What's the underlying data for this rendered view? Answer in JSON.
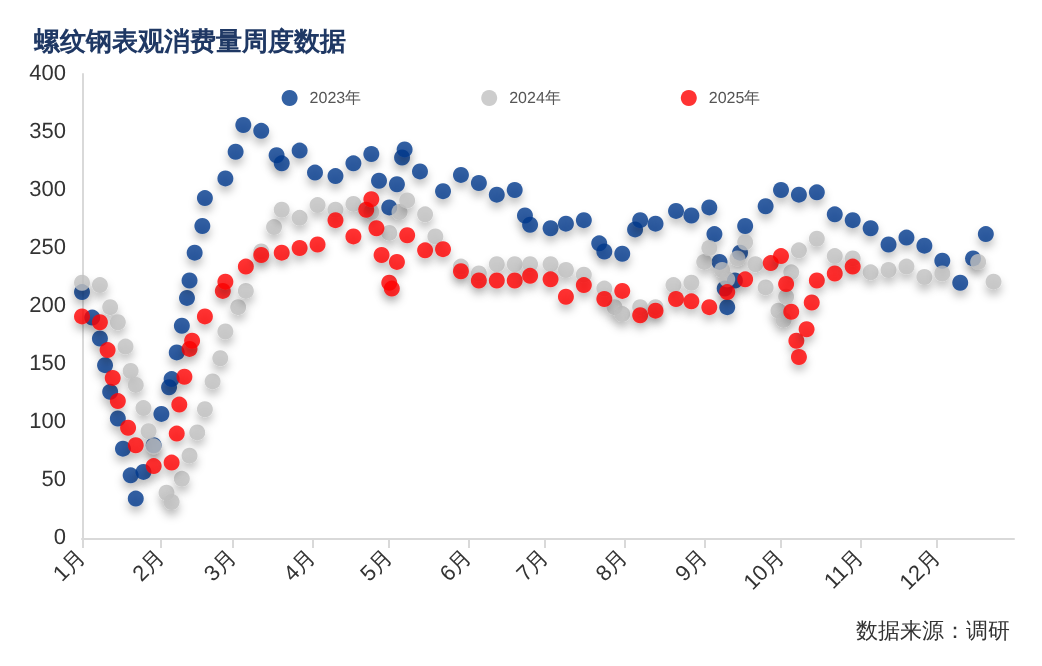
{
  "chart_data": {
    "type": "scatter",
    "title": "螺纹钢表观消费量周度数据",
    "annotations": [
      "数据来源：调研"
    ],
    "marker": "circle",
    "grid": false,
    "legend": "top",
    "xlim": [
      "--01-01",
      "--12-31"
    ],
    "xticks": [
      {
        "value": "--01-01",
        "label": "1月"
      },
      {
        "value": "--02-01",
        "label": "2月"
      },
      {
        "value": "--03-01",
        "label": "3月"
      },
      {
        "value": "--04-01",
        "label": "4月"
      },
      {
        "value": "--05-01",
        "label": "5月"
      },
      {
        "value": "--06-01",
        "label": "6月"
      },
      {
        "value": "--07-01",
        "label": "7月"
      },
      {
        "value": "--08-01",
        "label": "8月"
      },
      {
        "value": "--09-01",
        "label": "9月"
      },
      {
        "value": "--10-01",
        "label": "10月"
      },
      {
        "value": "--11-01",
        "label": "11月"
      },
      {
        "value": "--12-01",
        "label": "12月"
      }
    ],
    "ylim": [
      0,
      400
    ],
    "yticks": [
      0,
      50,
      100,
      150,
      200,
      250,
      300,
      350,
      400
    ],
    "series": [
      {
        "name": "2023年",
        "color": "#003a8c",
        "x": [
          "--01-01",
          "--01-05",
          "--01-08",
          "--01-10",
          "--01-12",
          "--01-15",
          "--01-17",
          "--01-20",
          "--01-22",
          "--01-25",
          "--01-29",
          "--02-01",
          "--02-04",
          "--02-05",
          "--02-07",
          "--02-09",
          "--02-11",
          "--02-12",
          "--02-14",
          "--02-17",
          "--02-18",
          "--02-26",
          "--03-02",
          "--03-05",
          "--03-12",
          "--03-18",
          "--03-20",
          "--03-27",
          "--04-02",
          "--04-10",
          "--04-17",
          "--04-24",
          "--04-27",
          "--05-01",
          "--05-04",
          "--05-06",
          "--05-07",
          "--05-13",
          "--05-22",
          "--05-29",
          "--06-05",
          "--06-12",
          "--06-19",
          "--06-23",
          "--06-25",
          "--07-03",
          "--07-09",
          "--07-16",
          "--07-22",
          "--07-24",
          "--07-31",
          "--08-05",
          "--08-07",
          "--08-13",
          "--08-21",
          "--08-27",
          "--09-03",
          "--09-05",
          "--09-07",
          "--09-09",
          "--09-10",
          "--09-13",
          "--09-15",
          "--09-17",
          "--09-25",
          "--10-01",
          "--10-08",
          "--10-15",
          "--10-22",
          "--10-29",
          "--11-05",
          "--11-12",
          "--11-19",
          "--11-26",
          "--12-03",
          "--12-10",
          "--12-15",
          "--12-20"
        ],
        "values": [
          212,
          190,
          172,
          149,
          126,
          103,
          77,
          54,
          34,
          57,
          80,
          107,
          130,
          137,
          160,
          183,
          207,
          222,
          246,
          269,
          293,
          310,
          333,
          356,
          351,
          330,
          323,
          334,
          315,
          312,
          323,
          331,
          308,
          285,
          305,
          328,
          335,
          316,
          299,
          313,
          306,
          296,
          300,
          278,
          270,
          267,
          271,
          274,
          254,
          247,
          245,
          266,
          274,
          271,
          282,
          278,
          285,
          262,
          238,
          215,
          199,
          222,
          246,
          269,
          286,
          300,
          296,
          298,
          279,
          274,
          267,
          253,
          259,
          252,
          239,
          220,
          241,
          262
        ]
      },
      {
        "name": "2024年",
        "color": "#c0c0c0",
        "x": [
          "--01-01",
          "--01-08",
          "--01-12",
          "--01-15",
          "--01-18",
          "--01-20",
          "--01-22",
          "--01-25",
          "--01-27",
          "--01-29",
          "--02-03",
          "--02-05",
          "--02-09",
          "--02-12",
          "--02-15",
          "--02-18",
          "--02-21",
          "--02-24",
          "--02-26",
          "--03-03",
          "--03-06",
          "--03-12",
          "--03-17",
          "--03-20",
          "--03-27",
          "--04-03",
          "--04-10",
          "--04-17",
          "--04-24",
          "--05-01",
          "--05-05",
          "--05-08",
          "--05-15",
          "--05-19",
          "--05-29",
          "--06-05",
          "--06-12",
          "--06-19",
          "--06-25",
          "--07-03",
          "--07-09",
          "--07-16",
          "--07-24",
          "--07-28",
          "--07-31",
          "--08-07",
          "--08-13",
          "--08-20",
          "--08-27",
          "--09-01",
          "--09-03",
          "--09-08",
          "--09-10",
          "--09-14",
          "--09-17",
          "--09-21",
          "--09-25",
          "--09-30",
          "--10-02",
          "--10-03",
          "--10-05",
          "--10-08",
          "--10-15",
          "--10-22",
          "--10-29",
          "--11-05",
          "--11-12",
          "--11-19",
          "--11-26",
          "--12-03",
          "--12-17",
          "--12-23"
        ],
        "values": [
          220,
          218,
          199,
          186,
          165,
          144,
          132,
          112,
          92,
          79,
          39,
          31,
          51,
          71,
          91,
          111,
          135,
          155,
          178,
          199,
          213,
          247,
          268,
          283,
          276,
          287,
          283,
          288,
          281,
          263,
          281,
          291,
          279,
          260,
          234,
          228,
          236,
          236,
          236,
          236,
          231,
          227,
          215,
          199,
          193,
          199,
          199,
          218,
          220,
          238,
          250,
          231,
          223,
          241,
          255,
          236,
          216,
          196,
          188,
          208,
          229,
          248,
          258,
          243,
          241,
          229,
          231,
          234,
          225,
          228,
          238,
          221
        ]
      },
      {
        "name": "2025年",
        "color": "#ff0000",
        "x": [
          "--01-01",
          "--01-08",
          "--01-11",
          "--01-13",
          "--01-15",
          "--01-19",
          "--01-22",
          "--01-29",
          "--02-05",
          "--02-07",
          "--02-08",
          "--02-10",
          "--02-12",
          "--02-13",
          "--02-18",
          "--02-25",
          "--02-26",
          "--03-06",
          "--03-12",
          "--03-20",
          "--03-27",
          "--04-03",
          "--04-10",
          "--04-17",
          "--04-22",
          "--04-24",
          "--04-26",
          "--04-28",
          "--05-01",
          "--05-02",
          "--05-04",
          "--05-08",
          "--05-15",
          "--05-22",
          "--05-29",
          "--06-05",
          "--06-12",
          "--06-19",
          "--06-25",
          "--07-03",
          "--07-09",
          "--07-16",
          "--07-24",
          "--07-31",
          "--08-07",
          "--08-13",
          "--08-21",
          "--08-27",
          "--09-03",
          "--09-10",
          "--09-17",
          "--09-27",
          "--10-01",
          "--10-03",
          "--10-05",
          "--10-07",
          "--10-08",
          "--10-11",
          "--10-13",
          "--10-15",
          "--10-22",
          "--10-29"
        ],
        "values": [
          191,
          186,
          162,
          138,
          118,
          95,
          80,
          62,
          65,
          90,
          115,
          139,
          163,
          170,
          191,
          213,
          221,
          234,
          244,
          246,
          250,
          253,
          274,
          260,
          283,
          292,
          267,
          244,
          220,
          215,
          238,
          261,
          248,
          249,
          230,
          222,
          222,
          222,
          226,
          223,
          208,
          218,
          206,
          213,
          192,
          196,
          206,
          204,
          199,
          212,
          223,
          237,
          243,
          219,
          195,
          170,
          156,
          180,
          203,
          222,
          228,
          234
        ]
      }
    ]
  }
}
